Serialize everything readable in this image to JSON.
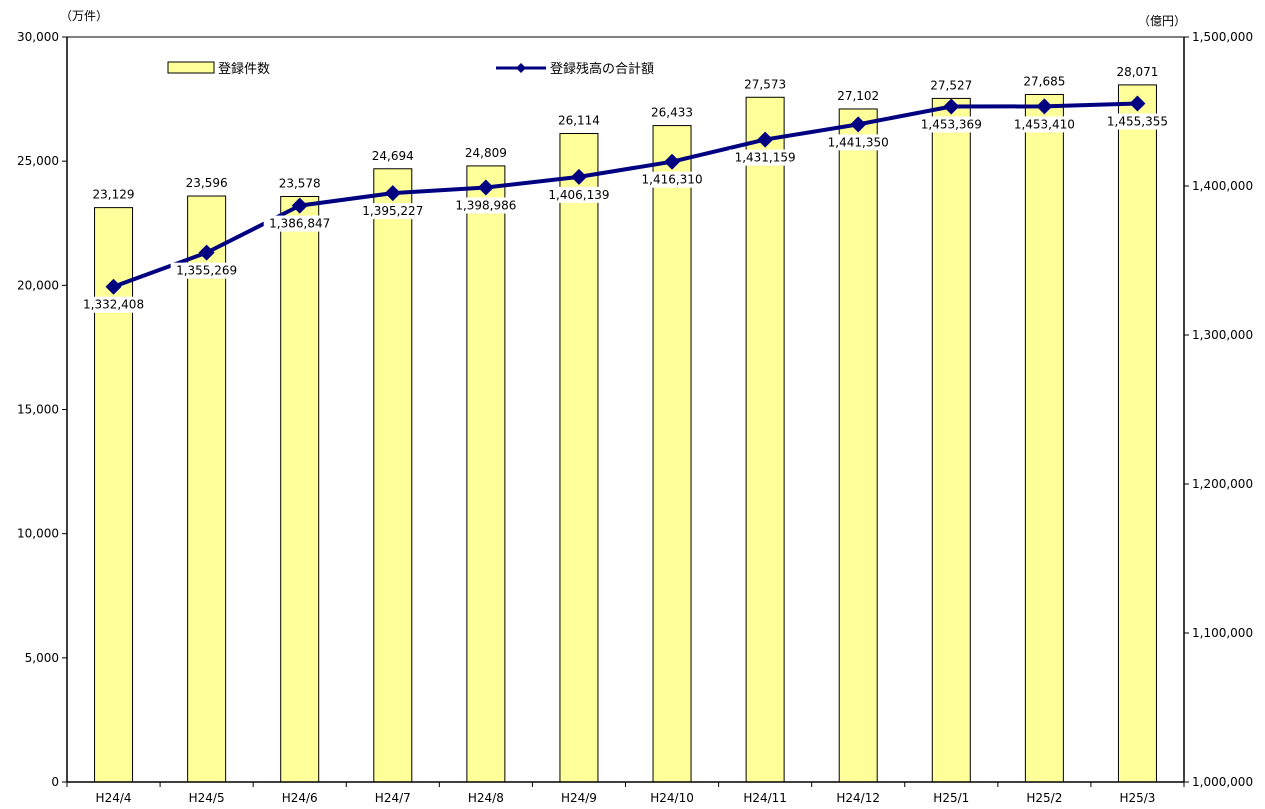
{
  "chart_data": {
    "type": "bar",
    "title": "",
    "categories": [
      "H24/4",
      "H24/5",
      "H24/6",
      "H24/7",
      "H24/8",
      "H24/9",
      "H24/10",
      "H24/11",
      "H24/12",
      "H25/1",
      "H25/2",
      "H25/3"
    ],
    "y_left_unit": "（万件）",
    "y_right_unit": "（億円）",
    "y_left_ticks": [
      "0",
      "5,000",
      "10,000",
      "15,000",
      "20,000",
      "25,000",
      "30,000"
    ],
    "y_right_ticks": [
      "1,000,000",
      "1,100,000",
      "1,200,000",
      "1,300,000",
      "1,400,000",
      "1,500,000"
    ],
    "ylim_left": [
      0,
      30000
    ],
    "ylim_right": [
      1000000,
      1500000
    ],
    "legend_placement": "top",
    "series": [
      {
        "name": "登録件数",
        "type": "bar",
        "axis": "left",
        "color": "#ffff99",
        "values": [
          23129,
          23596,
          23578,
          24694,
          24809,
          26114,
          26433,
          27573,
          27102,
          27527,
          27685,
          28071
        ],
        "labels": [
          "23,129",
          "23,596",
          "23,578",
          "24,694",
          "24,809",
          "26,114",
          "26,433",
          "27,573",
          "27,102",
          "27,527",
          "27,685",
          "28,071"
        ]
      },
      {
        "name": "登録残高の合計額",
        "type": "line",
        "axis": "right",
        "color": "#000080",
        "values": [
          1332408,
          1355269,
          1386847,
          1395227,
          1398986,
          1406139,
          1416310,
          1431159,
          1441350,
          1453369,
          1453410,
          1455355
        ],
        "labels": [
          "1,332,408",
          "1,355,269",
          "1,386,847",
          "1,395,227",
          "1,398,986",
          "1,406,139",
          "1,416,310",
          "1,431,159",
          "1,441,350",
          "1,453,369",
          "1,453,410",
          "1,455,355"
        ]
      }
    ]
  }
}
